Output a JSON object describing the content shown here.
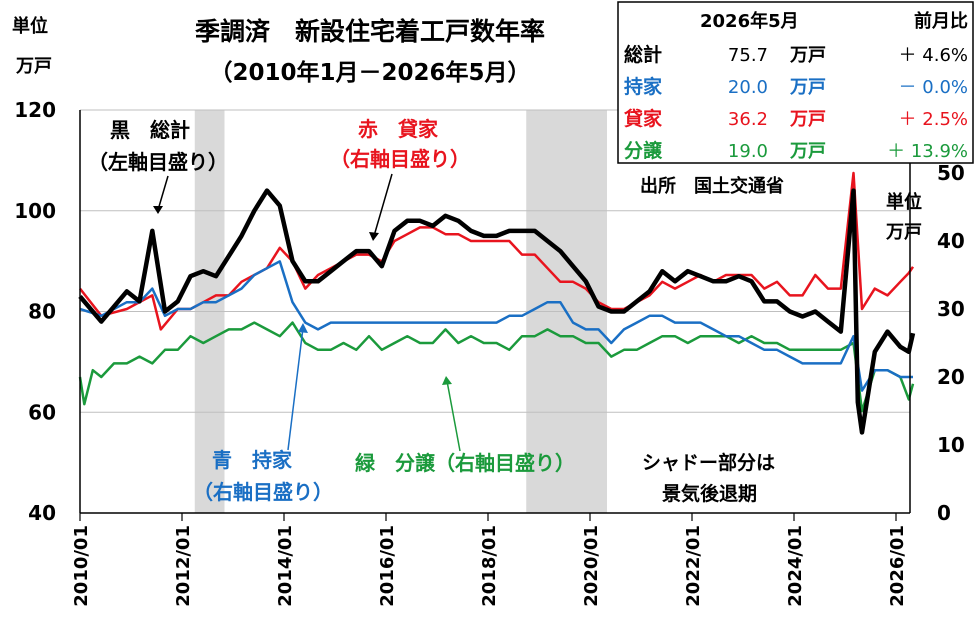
{
  "chart_data": {
    "type": "line",
    "title": "季調済　新設住宅着工戸数年率",
    "subtitle": "（2010年1月－2026年5月）",
    "left_unit": [
      "単位",
      "万戸"
    ],
    "right_unit": [
      "単位",
      "万戸"
    ],
    "left_axis": {
      "ylim": [
        40,
        120
      ],
      "ticks": [
        "40",
        "60",
        "80",
        "100",
        "120"
      ]
    },
    "right_axis": {
      "ylim": [
        0,
        60
      ],
      "ticks": [
        "0",
        "10",
        "20",
        "30",
        "40",
        "50"
      ]
    },
    "x_ticks": [
      "2010/01",
      "2012/01",
      "2014/01",
      "2016/01",
      "2018/01",
      "2020/01",
      "2022/01",
      "2024/01",
      "2026/01"
    ],
    "xlim": [
      "2010/01",
      "2026/05"
    ],
    "grid": "horizontal",
    "recessions": [
      [
        "2012/04",
        "2012/11"
      ],
      [
        "2018/10",
        "2020/05"
      ]
    ],
    "shade_note": [
      "シャドー部分は",
      "景気後退期"
    ],
    "source": "出所　国土交通省",
    "table": {
      "header": {
        "date": "2026年5月",
        "change": "前月比"
      },
      "rows": [
        {
          "name": "総計",
          "value": "75.7",
          "unit": "万戸",
          "change": "＋ 4.6%",
          "color": "#000000"
        },
        {
          "name": "持家",
          "value": "20.0",
          "unit": "万戸",
          "change": "－ 0.0%",
          "color": "#1a6fc4"
        },
        {
          "name": "貸家",
          "value": "36.2",
          "unit": "万戸",
          "change": "＋ 2.5%",
          "color": "#e8141e"
        },
        {
          "name": "分譲",
          "value": "19.0",
          "unit": "万戸",
          "change": "＋ 13.9%",
          "color": "#1b9a3c"
        }
      ]
    },
    "annotations": {
      "black": [
        "黒　総計",
        "（左軸目盛り）"
      ],
      "red": [
        "赤　貸家",
        "（右軸目盛り）"
      ],
      "blue": [
        "青　持家",
        "（右軸目盛り）"
      ],
      "green": [
        "緑　分譲（右軸目盛り）"
      ]
    },
    "series": [
      {
        "name": "総計",
        "axis": "left",
        "color": "#000000",
        "points": [
          [
            "2010/01",
            83
          ],
          [
            "2010/06",
            78
          ],
          [
            "2010/12",
            84
          ],
          [
            "2011/03",
            82
          ],
          [
            "2011/06",
            96
          ],
          [
            "2011/09",
            80
          ],
          [
            "2011/12",
            82
          ],
          [
            "2012/03",
            87
          ],
          [
            "2012/06",
            88
          ],
          [
            "2012/09",
            87
          ],
          [
            "2012/12",
            91
          ],
          [
            "2013/03",
            95
          ],
          [
            "2013/06",
            100
          ],
          [
            "2013/09",
            104
          ],
          [
            "2013/12",
            101
          ],
          [
            "2014/03",
            90
          ],
          [
            "2014/06",
            86
          ],
          [
            "2014/09",
            86
          ],
          [
            "2014/12",
            88
          ],
          [
            "2015/03",
            90
          ],
          [
            "2015/06",
            92
          ],
          [
            "2015/09",
            92
          ],
          [
            "2015/12",
            89
          ],
          [
            "2016/03",
            96
          ],
          [
            "2016/06",
            98
          ],
          [
            "2016/09",
            98
          ],
          [
            "2016/12",
            97
          ],
          [
            "2017/03",
            99
          ],
          [
            "2017/06",
            98
          ],
          [
            "2017/09",
            96
          ],
          [
            "2017/12",
            95
          ],
          [
            "2018/03",
            95
          ],
          [
            "2018/06",
            96
          ],
          [
            "2018/09",
            96
          ],
          [
            "2018/12",
            96
          ],
          [
            "2019/03",
            94
          ],
          [
            "2019/06",
            92
          ],
          [
            "2019/09",
            89
          ],
          [
            "2019/12",
            86
          ],
          [
            "2020/03",
            81
          ],
          [
            "2020/06",
            80
          ],
          [
            "2020/09",
            80
          ],
          [
            "2020/12",
            82
          ],
          [
            "2021/03",
            84
          ],
          [
            "2021/06",
            88
          ],
          [
            "2021/09",
            86
          ],
          [
            "2021/12",
            88
          ],
          [
            "2022/03",
            87
          ],
          [
            "2022/06",
            86
          ],
          [
            "2022/09",
            86
          ],
          [
            "2022/12",
            87
          ],
          [
            "2023/03",
            86
          ],
          [
            "2023/06",
            82
          ],
          [
            "2023/09",
            82
          ],
          [
            "2023/12",
            80
          ],
          [
            "2024/03",
            79
          ],
          [
            "2024/06",
            80
          ],
          [
            "2024/09",
            78
          ],
          [
            "2024/12",
            76
          ],
          [
            "2025/03",
            104
          ],
          [
            "2025/04",
            62
          ],
          [
            "2025/05",
            56
          ],
          [
            "2025/08",
            72
          ],
          [
            "2025/11",
            76
          ],
          [
            "2026/02",
            73
          ],
          [
            "2026/04",
            72
          ],
          [
            "2026/05",
            75.7
          ]
        ]
      },
      {
        "name": "貸家",
        "axis": "right",
        "color": "#e8141e",
        "points": [
          [
            "2010/01",
            33
          ],
          [
            "2010/06",
            29
          ],
          [
            "2010/12",
            30
          ],
          [
            "2011/03",
            31
          ],
          [
            "2011/06",
            32
          ],
          [
            "2011/08",
            27
          ],
          [
            "2011/12",
            30
          ],
          [
            "2012/03",
            30
          ],
          [
            "2012/06",
            31
          ],
          [
            "2012/09",
            32
          ],
          [
            "2012/12",
            32
          ],
          [
            "2013/03",
            34
          ],
          [
            "2013/06",
            35
          ],
          [
            "2013/09",
            36
          ],
          [
            "2013/12",
            39
          ],
          [
            "2014/03",
            37
          ],
          [
            "2014/06",
            33
          ],
          [
            "2014/09",
            35
          ],
          [
            "2014/12",
            36
          ],
          [
            "2015/03",
            37
          ],
          [
            "2015/06",
            38
          ],
          [
            "2015/09",
            38
          ],
          [
            "2015/12",
            37
          ],
          [
            "2016/03",
            40
          ],
          [
            "2016/06",
            41
          ],
          [
            "2016/09",
            42
          ],
          [
            "2016/12",
            42
          ],
          [
            "2017/03",
            41
          ],
          [
            "2017/06",
            41
          ],
          [
            "2017/09",
            40
          ],
          [
            "2017/12",
            40
          ],
          [
            "2018/03",
            40
          ],
          [
            "2018/06",
            40
          ],
          [
            "2018/09",
            38
          ],
          [
            "2018/12",
            38
          ],
          [
            "2019/03",
            36
          ],
          [
            "2019/06",
            34
          ],
          [
            "2019/09",
            34
          ],
          [
            "2019/12",
            33
          ],
          [
            "2020/03",
            31
          ],
          [
            "2020/06",
            30
          ],
          [
            "2020/09",
            30
          ],
          [
            "2020/12",
            31
          ],
          [
            "2021/03",
            32
          ],
          [
            "2021/06",
            34
          ],
          [
            "2021/09",
            33
          ],
          [
            "2021/12",
            34
          ],
          [
            "2022/03",
            35
          ],
          [
            "2022/06",
            34
          ],
          [
            "2022/09",
            35
          ],
          [
            "2022/12",
            35
          ],
          [
            "2023/03",
            35
          ],
          [
            "2023/06",
            33
          ],
          [
            "2023/09",
            34
          ],
          [
            "2023/12",
            32
          ],
          [
            "2024/03",
            32
          ],
          [
            "2024/06",
            35
          ],
          [
            "2024/09",
            33
          ],
          [
            "2024/12",
            33
          ],
          [
            "2025/03",
            50
          ],
          [
            "2025/05",
            30
          ],
          [
            "2025/08",
            33
          ],
          [
            "2025/11",
            32
          ],
          [
            "2026/02",
            34
          ],
          [
            "2026/04",
            35.3
          ],
          [
            "2026/05",
            36.2
          ]
        ]
      },
      {
        "name": "持家",
        "axis": "right",
        "color": "#1a6fc4",
        "points": [
          [
            "2010/01",
            30
          ],
          [
            "2010/06",
            29
          ],
          [
            "2010/12",
            31
          ],
          [
            "2011/03",
            31
          ],
          [
            "2011/06",
            33
          ],
          [
            "2011/09",
            29
          ],
          [
            "2011/12",
            30
          ],
          [
            "2012/03",
            30
          ],
          [
            "2012/06",
            31
          ],
          [
            "2012/09",
            31
          ],
          [
            "2012/12",
            32
          ],
          [
            "2013/03",
            33
          ],
          [
            "2013/06",
            35
          ],
          [
            "2013/09",
            36
          ],
          [
            "2013/12",
            37
          ],
          [
            "2014/03",
            31
          ],
          [
            "2014/06",
            28
          ],
          [
            "2014/09",
            27
          ],
          [
            "2014/12",
            28
          ],
          [
            "2015/03",
            28
          ],
          [
            "2015/06",
            28
          ],
          [
            "2015/09",
            28
          ],
          [
            "2015/12",
            28
          ],
          [
            "2016/03",
            28
          ],
          [
            "2016/06",
            28
          ],
          [
            "2016/09",
            28
          ],
          [
            "2016/12",
            28
          ],
          [
            "2017/03",
            28
          ],
          [
            "2017/06",
            28
          ],
          [
            "2017/09",
            28
          ],
          [
            "2017/12",
            28
          ],
          [
            "2018/03",
            28
          ],
          [
            "2018/06",
            29
          ],
          [
            "2018/09",
            29
          ],
          [
            "2018/12",
            30
          ],
          [
            "2019/03",
            31
          ],
          [
            "2019/06",
            31
          ],
          [
            "2019/09",
            28
          ],
          [
            "2019/12",
            27
          ],
          [
            "2020/03",
            27
          ],
          [
            "2020/06",
            25
          ],
          [
            "2020/09",
            27
          ],
          [
            "2020/12",
            28
          ],
          [
            "2021/03",
            29
          ],
          [
            "2021/06",
            29
          ],
          [
            "2021/09",
            28
          ],
          [
            "2021/12",
            28
          ],
          [
            "2022/03",
            28
          ],
          [
            "2022/06",
            27
          ],
          [
            "2022/09",
            26
          ],
          [
            "2022/12",
            26
          ],
          [
            "2023/03",
            25
          ],
          [
            "2023/06",
            24
          ],
          [
            "2023/09",
            24
          ],
          [
            "2023/12",
            23
          ],
          [
            "2024/03",
            22
          ],
          [
            "2024/06",
            22
          ],
          [
            "2024/09",
            22
          ],
          [
            "2024/12",
            22
          ],
          [
            "2025/03",
            26
          ],
          [
            "2025/05",
            18
          ],
          [
            "2025/08",
            21
          ],
          [
            "2025/11",
            21
          ],
          [
            "2026/02",
            20
          ],
          [
            "2026/04",
            20
          ],
          [
            "2026/05",
            20.0
          ]
        ]
      },
      {
        "name": "分譲",
        "axis": "right",
        "color": "#1b9a3c",
        "points": [
          [
            "2010/01",
            20
          ],
          [
            "2010/02",
            16
          ],
          [
            "2010/04",
            21
          ],
          [
            "2010/06",
            20
          ],
          [
            "2010/09",
            22
          ],
          [
            "2010/12",
            22
          ],
          [
            "2011/03",
            23
          ],
          [
            "2011/06",
            22
          ],
          [
            "2011/09",
            24
          ],
          [
            "2011/12",
            24
          ],
          [
            "2012/03",
            26
          ],
          [
            "2012/06",
            25
          ],
          [
            "2012/09",
            26
          ],
          [
            "2012/12",
            27
          ],
          [
            "2013/03",
            27
          ],
          [
            "2013/06",
            28
          ],
          [
            "2013/09",
            27
          ],
          [
            "2013/12",
            26
          ],
          [
            "2014/03",
            28
          ],
          [
            "2014/06",
            25
          ],
          [
            "2014/09",
            24
          ],
          [
            "2014/12",
            24
          ],
          [
            "2015/03",
            25
          ],
          [
            "2015/06",
            24
          ],
          [
            "2015/09",
            26
          ],
          [
            "2015/12",
            24
          ],
          [
            "2016/03",
            25
          ],
          [
            "2016/06",
            26
          ],
          [
            "2016/09",
            25
          ],
          [
            "2016/12",
            25
          ],
          [
            "2017/03",
            27
          ],
          [
            "2017/06",
            25
          ],
          [
            "2017/09",
            26
          ],
          [
            "2017/12",
            25
          ],
          [
            "2018/03",
            25
          ],
          [
            "2018/06",
            24
          ],
          [
            "2018/09",
            26
          ],
          [
            "2018/12",
            26
          ],
          [
            "2019/03",
            27
          ],
          [
            "2019/06",
            26
          ],
          [
            "2019/09",
            26
          ],
          [
            "2019/12",
            25
          ],
          [
            "2020/03",
            25
          ],
          [
            "2020/06",
            23
          ],
          [
            "2020/09",
            24
          ],
          [
            "2020/12",
            24
          ],
          [
            "2021/03",
            25
          ],
          [
            "2021/06",
            26
          ],
          [
            "2021/09",
            26
          ],
          [
            "2021/12",
            25
          ],
          [
            "2022/03",
            26
          ],
          [
            "2022/06",
            26
          ],
          [
            "2022/09",
            26
          ],
          [
            "2022/12",
            25
          ],
          [
            "2023/03",
            26
          ],
          [
            "2023/06",
            25
          ],
          [
            "2023/09",
            25
          ],
          [
            "2023/12",
            24
          ],
          [
            "2024/03",
            24
          ],
          [
            "2024/06",
            24
          ],
          [
            "2024/09",
            24
          ],
          [
            "2024/12",
            24
          ],
          [
            "2025/03",
            25
          ],
          [
            "2025/05",
            15
          ],
          [
            "2025/08",
            21
          ],
          [
            "2025/11",
            21
          ],
          [
            "2026/02",
            20
          ],
          [
            "2026/04",
            16.7
          ],
          [
            "2026/05",
            19.0
          ]
        ]
      }
    ]
  }
}
